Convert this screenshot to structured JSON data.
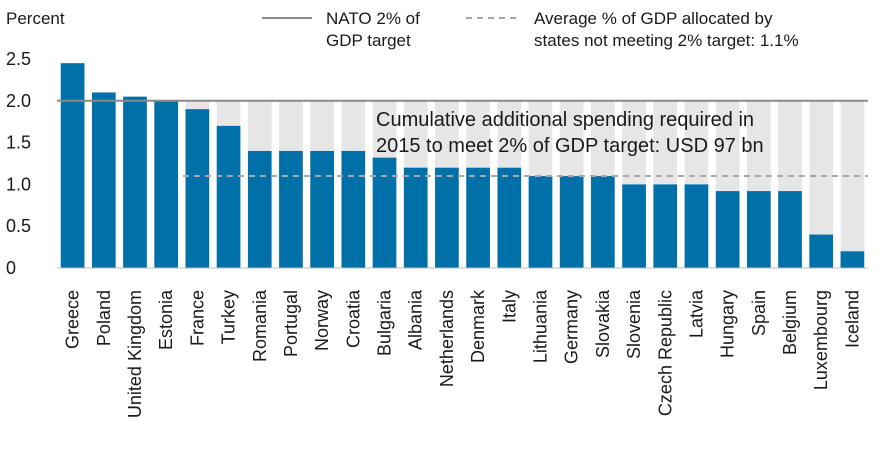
{
  "chart_data": {
    "type": "bar",
    "ylabel": "Percent",
    "ylim": [
      0,
      2.5
    ],
    "yticks": [
      "0",
      "0.5",
      "1.0",
      "1.5",
      "2.0",
      "2.5"
    ],
    "categories": [
      "Greece",
      "Poland",
      "United Kingdom",
      "Estonia",
      "France",
      "Turkey",
      "Romania",
      "Portugal",
      "Norway",
      "Croatia",
      "Bulgaria",
      "Albania",
      "Netherlands",
      "Denmark",
      "Italy",
      "Lithuania",
      "Germany",
      "Slovakia",
      "Slovenia",
      "Czech Republic",
      "Latvia",
      "Hungary",
      "Spain",
      "Belgium",
      "Luxembourg",
      "Iceland"
    ],
    "series": [
      {
        "name": "",
        "values": [
          2.45,
          2.1,
          2.05,
          2.0,
          1.9,
          1.7,
          1.4,
          1.4,
          1.4,
          1.4,
          1.32,
          1.2,
          1.2,
          1.2,
          1.2,
          1.1,
          1.1,
          1.1,
          1.0,
          1.0,
          1.0,
          0.92,
          0.92,
          0.92,
          0.4,
          0.2
        ]
      }
    ],
    "target_line": {
      "value": 2.0,
      "label": "NATO 2% of GDP target"
    },
    "average_line": {
      "value": 1.1,
      "start_category": "Turkey",
      "label": "Average % of GDP allocated by states not meeting 2% target: 1.1%"
    },
    "annotation": [
      "Cumulative additional spending required in",
      "2015 to meet 2% of GDP target: USD 97 bn"
    ],
    "legend": {
      "target_lines": [
        "NATO 2% of",
        "GDP target"
      ],
      "average_lines": [
        "Average % of GDP allocated by",
        "states not meeting 2% target: 1.1%"
      ]
    },
    "colors": {
      "bar": "#0070a8",
      "gap": "#e6e6e6",
      "target": "#8a8a8a",
      "average": "#a8a8a8"
    },
    "grid": false
  }
}
